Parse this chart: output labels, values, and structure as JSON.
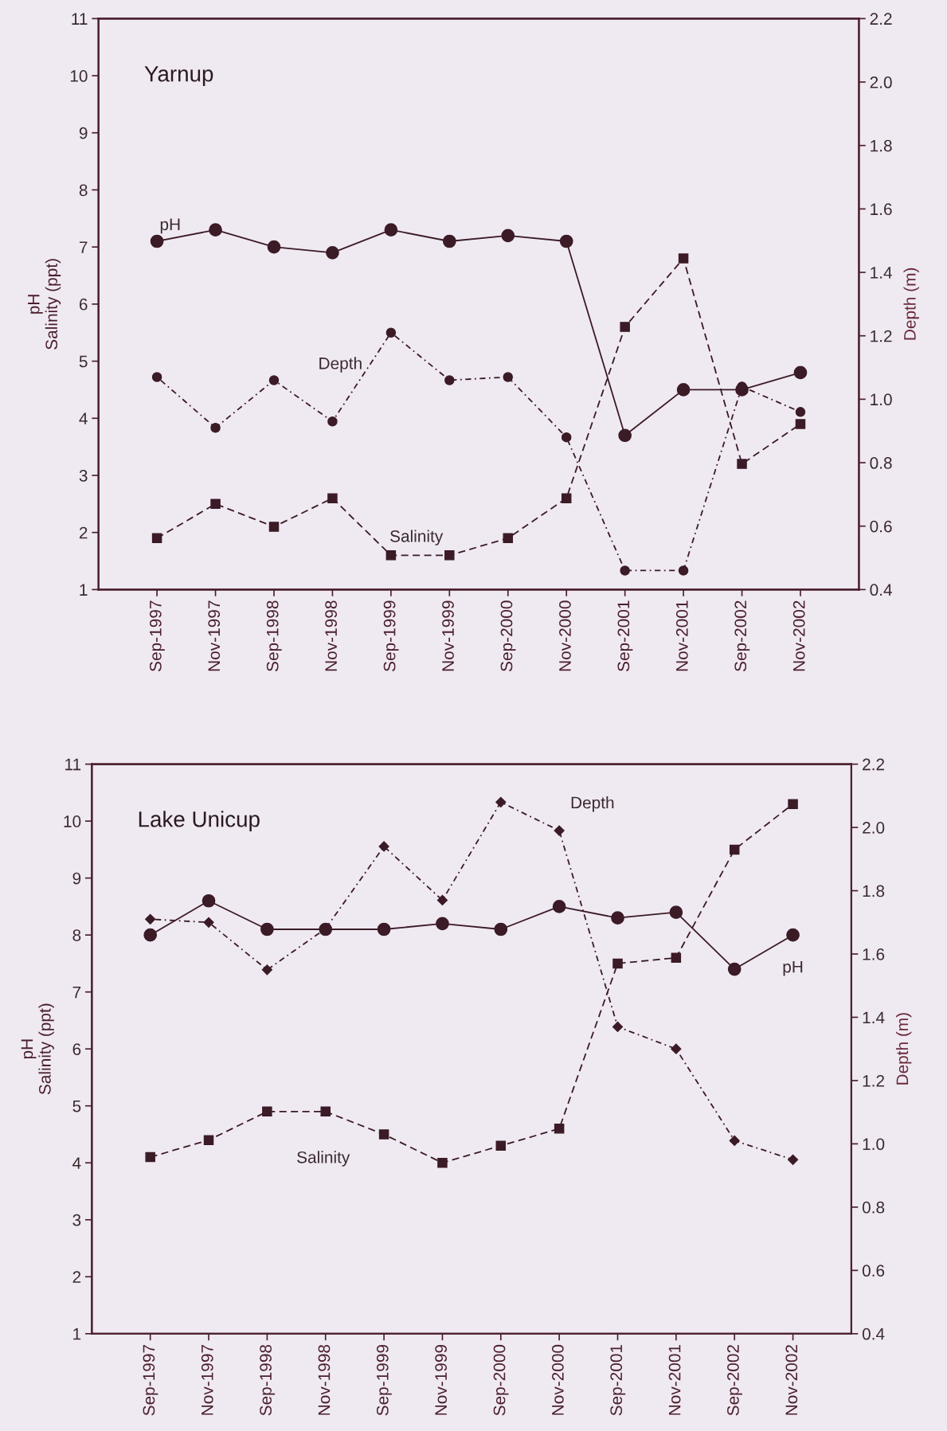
{
  "chart_data": [
    {
      "type": "line",
      "title": "Yarnup",
      "categories": [
        "Sep-1997",
        "Nov-1997",
        "Sep-1998",
        "Nov-1998",
        "Sep-1999",
        "Nov-1999",
        "Sep-2000",
        "Nov-2000",
        "Sep-2001",
        "Nov-2001",
        "Sep-2002",
        "Nov-2002"
      ],
      "ylabel": "pH\nSalinity (ppt)",
      "y2label": "Depth (m)",
      "ylim": [
        1,
        11
      ],
      "yticks": [
        1,
        2,
        3,
        4,
        5,
        6,
        7,
        8,
        9,
        10,
        11
      ],
      "y2lim": [
        0.4,
        2.2
      ],
      "y2ticks": [
        {
          "value": 0.4,
          "label": "0.4"
        },
        {
          "value": 0.6,
          "label": "0.6"
        },
        {
          "value": 0.8,
          "label": "0.8"
        },
        {
          "value": 1.0,
          "label": "1.0"
        },
        {
          "value": 1.2,
          "label": "1.2"
        },
        {
          "value": 1.4,
          "label": "1.4"
        },
        {
          "value": 1.6,
          "label": "1.6"
        },
        {
          "value": 1.8,
          "label": "1.8"
        },
        {
          "value": 2.0,
          "label": "2.0"
        },
        {
          "value": 2.2,
          "label": "2.2"
        }
      ],
      "grid": false,
      "legend": false,
      "series": [
        {
          "name": "pH",
          "color": "#3b1b26",
          "marker": "circle",
          "line_style": "solid",
          "values": [
            7.1,
            7.3,
            7.0,
            6.9,
            7.3,
            7.1,
            7.2,
            7.1,
            3.7,
            4.5,
            4.5,
            4.8
          ]
        },
        {
          "name": "Depth",
          "color": "#3b1b26",
          "marker": "circle",
          "line_style": "dotted",
          "axis": "y2",
          "values": [
            1.07,
            0.91,
            1.06,
            0.93,
            1.21,
            1.06,
            1.07,
            0.88,
            0.46,
            0.46,
            1.04,
            0.96
          ]
        },
        {
          "name": "Salinity",
          "color": "#3b1b26",
          "marker": "square",
          "line_style": "dashed",
          "values": [
            1.9,
            2.5,
            2.1,
            2.6,
            1.6,
            1.6,
            1.9,
            2.6,
            5.6,
            6.8,
            3.2,
            3.9
          ]
        }
      ]
    },
    {
      "type": "line",
      "title": "Lake Unicup",
      "categories": [
        "Sep-1997",
        "Nov-1997",
        "Sep-1998",
        "Nov-1998",
        "Sep-1999",
        "Nov-1999",
        "Sep-2000",
        "Nov-2000",
        "Sep-2001",
        "Nov-2001",
        "Sep-2002",
        "Nov-2002"
      ],
      "ylabel": "pH\nSalinity (ppt)",
      "y2label": "Depth (m)",
      "ylim": [
        1,
        11
      ],
      "yticks": [
        1,
        2,
        3,
        4,
        5,
        6,
        7,
        8,
        9,
        10,
        11
      ],
      "y2lim": [
        0.4,
        2.2
      ],
      "y2ticks": [
        {
          "value": 0.4,
          "label": "0.4"
        },
        {
          "value": 0.6,
          "label": "0.6"
        },
        {
          "value": 0.8,
          "label": "0.8"
        },
        {
          "value": 1.0,
          "label": "1.0"
        },
        {
          "value": 1.2,
          "label": "1.2"
        },
        {
          "value": 1.4,
          "label": "1.4"
        },
        {
          "value": 1.6,
          "label": "1.6"
        },
        {
          "value": 1.8,
          "label": "1.8"
        },
        {
          "value": 2.0,
          "label": "2.0"
        },
        {
          "value": 2.2,
          "label": "2.2"
        }
      ],
      "grid": false,
      "legend": false,
      "series": [
        {
          "name": "pH",
          "color": "#3b1b26",
          "marker": "circle",
          "line_style": "solid",
          "values": [
            8.0,
            8.6,
            8.1,
            8.1,
            8.1,
            8.2,
            8.1,
            8.5,
            8.3,
            8.4,
            7.4,
            8.0
          ]
        },
        {
          "name": "Depth",
          "color": "#3b1b26",
          "marker": "diamond",
          "line_style": "dotted",
          "axis": "y2",
          "values": [
            1.71,
            1.7,
            1.55,
            1.68,
            1.94,
            1.77,
            2.08,
            1.99,
            1.37,
            1.3,
            1.01,
            0.95
          ]
        },
        {
          "name": "Salinity",
          "color": "#3b1b26",
          "marker": "square",
          "line_style": "dashed",
          "values": [
            4.1,
            4.4,
            4.9,
            4.9,
            4.5,
            4.0,
            4.3,
            4.6,
            7.5,
            7.6,
            9.5,
            10.3
          ]
        }
      ]
    }
  ]
}
